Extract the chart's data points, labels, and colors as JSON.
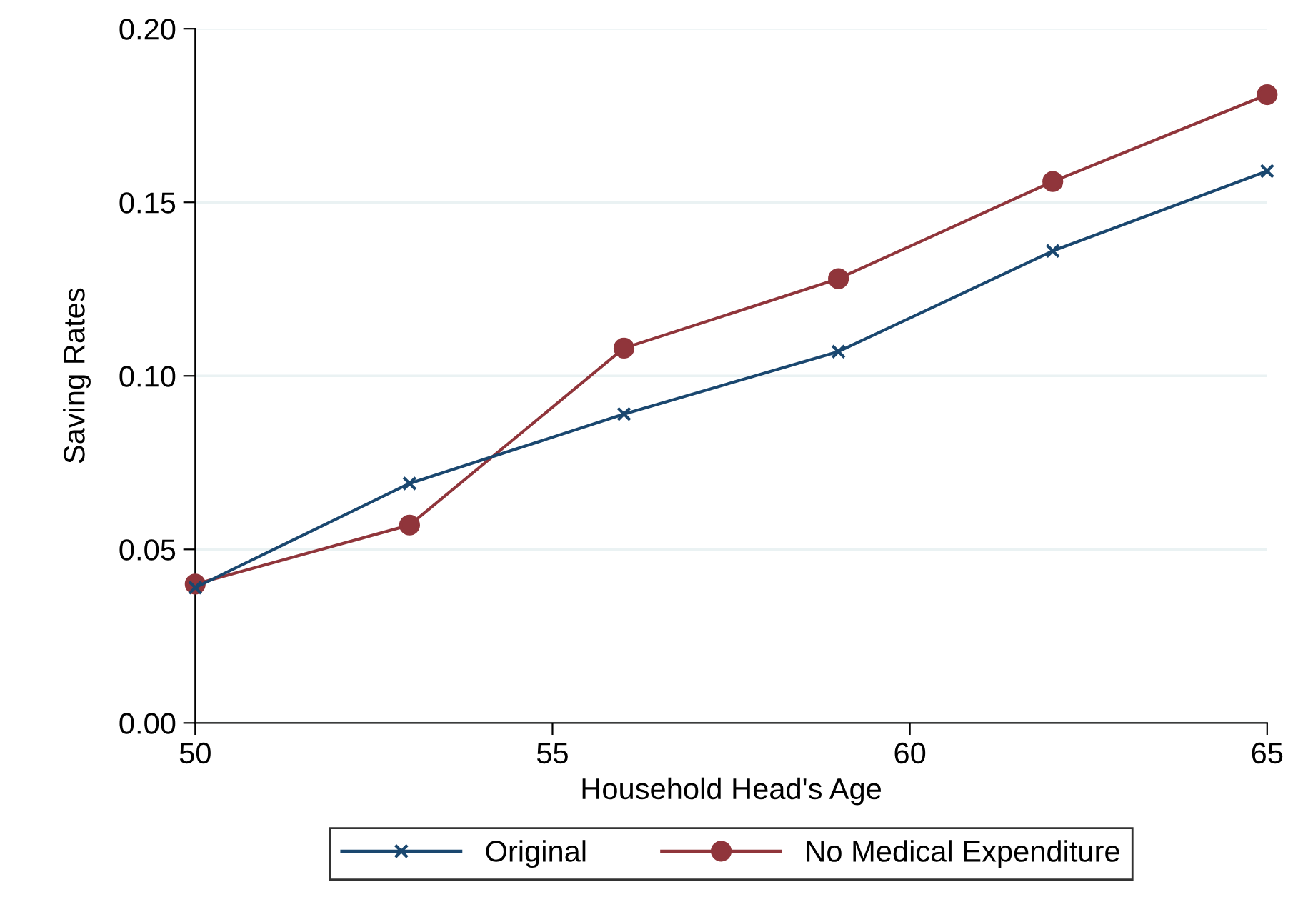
{
  "chart_data": {
    "type": "line",
    "xlabel": "Household Head's Age",
    "ylabel": "Saving Rates",
    "x": [
      50,
      53,
      56,
      59,
      62,
      65
    ],
    "series": [
      {
        "name": "Original",
        "color": "#1a476f",
        "marker": "cross",
        "values": [
          0.039,
          0.069,
          0.089,
          0.107,
          0.136,
          0.159
        ]
      },
      {
        "name": "No Medical Expenditure",
        "color": "#90353b",
        "marker": "circle",
        "values": [
          0.04,
          0.057,
          0.108,
          0.128,
          0.156,
          0.181
        ]
      }
    ],
    "xlim": [
      50,
      65
    ],
    "xticks": [
      50,
      55,
      60,
      65
    ],
    "ylim": [
      0,
      0.2
    ],
    "yticks": [
      {
        "value": 0,
        "label": "0.00"
      },
      {
        "value": 0.05,
        "label": "0.05"
      },
      {
        "value": 0.1,
        "label": "0.10"
      },
      {
        "value": 0.15,
        "label": "0.15"
      },
      {
        "value": 0.2,
        "label": "0.20"
      }
    ],
    "grid": "y",
    "legend": "bottom",
    "line_style": "solid"
  }
}
